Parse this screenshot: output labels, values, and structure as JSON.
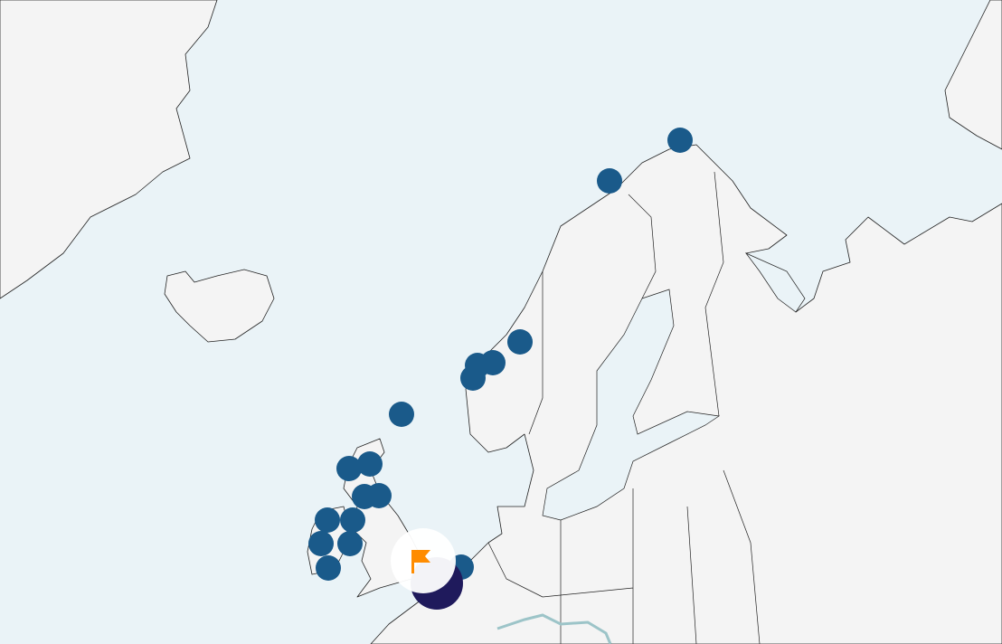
{
  "map": {
    "colors": {
      "sea": "#eaf3f7",
      "land": "#f4f4f4",
      "border": "#222222",
      "marker": "#1a5a8a",
      "cluster": "#1f1a5c",
      "selected_bubble": "#ffffff",
      "flag": "#ff8c00",
      "river": "#9cc4c8"
    },
    "icons": {
      "selected_marker": "flag-icon"
    }
  }
}
